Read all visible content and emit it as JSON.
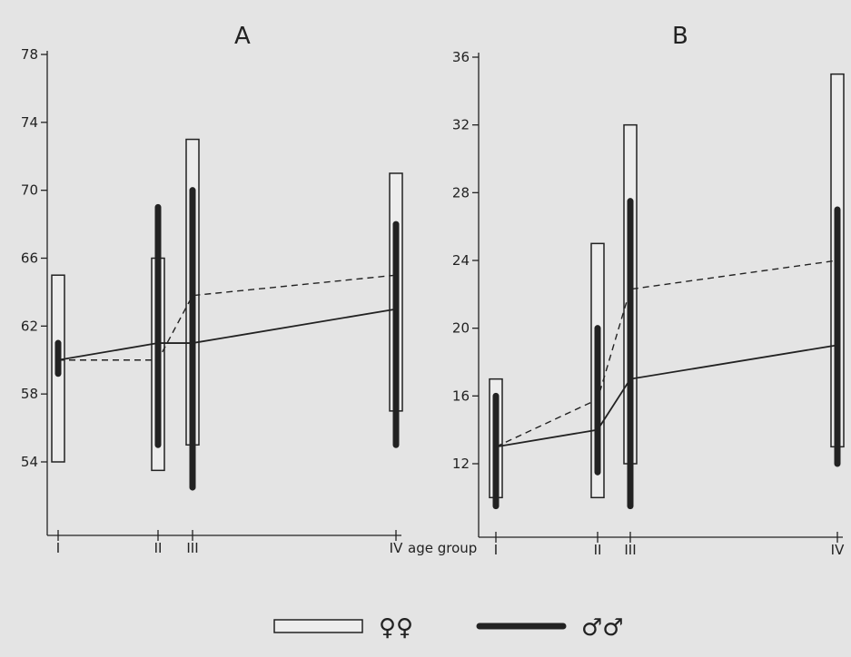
{
  "colors": {
    "background": "#e4e4e4",
    "ink": "#222222",
    "box_fill": "#ececec"
  },
  "legend": {
    "items": [
      {
        "style": "open-box",
        "label": "♀♀"
      },
      {
        "style": "solid-bar",
        "label": "♂♂"
      }
    ]
  },
  "x_axis_title": "age group",
  "chart_data": [
    {
      "type": "range-bar",
      "title": "A",
      "categories": [
        "I",
        "II",
        "III",
        "IV"
      ],
      "ylim": [
        52,
        78
      ],
      "yticks": [
        54,
        58,
        62,
        66,
        70,
        74,
        78
      ],
      "female_ranges": [
        [
          54,
          65
        ],
        [
          53.5,
          66
        ],
        [
          55,
          73
        ],
        [
          57,
          71
        ]
      ],
      "male_ranges": [
        [
          59.2,
          61
        ],
        [
          55,
          69
        ],
        [
          52.5,
          70
        ],
        [
          55,
          68
        ]
      ],
      "female_means": [
        60,
        60,
        63.8,
        65
      ],
      "male_means": [
        60,
        61,
        61,
        63
      ],
      "female_mean_line": "dashed",
      "male_mean_line": "solid"
    },
    {
      "type": "range-bar",
      "title": "B",
      "categories": [
        "I",
        "II",
        "III",
        "IV"
      ],
      "ylim": [
        9,
        36
      ],
      "yticks": [
        12,
        16,
        20,
        24,
        28,
        32,
        36
      ],
      "female_ranges": [
        [
          10,
          17
        ],
        [
          10,
          25
        ],
        [
          12,
          32
        ],
        [
          13,
          35
        ]
      ],
      "male_ranges": [
        [
          9.5,
          16
        ],
        [
          11.5,
          20
        ],
        [
          9.5,
          27.5
        ],
        [
          12,
          27
        ]
      ],
      "female_means": [
        13,
        15.8,
        22.3,
        24
      ],
      "male_means": [
        13,
        14,
        17,
        19
      ],
      "female_mean_line": "dashed",
      "male_mean_line": "solid"
    }
  ]
}
